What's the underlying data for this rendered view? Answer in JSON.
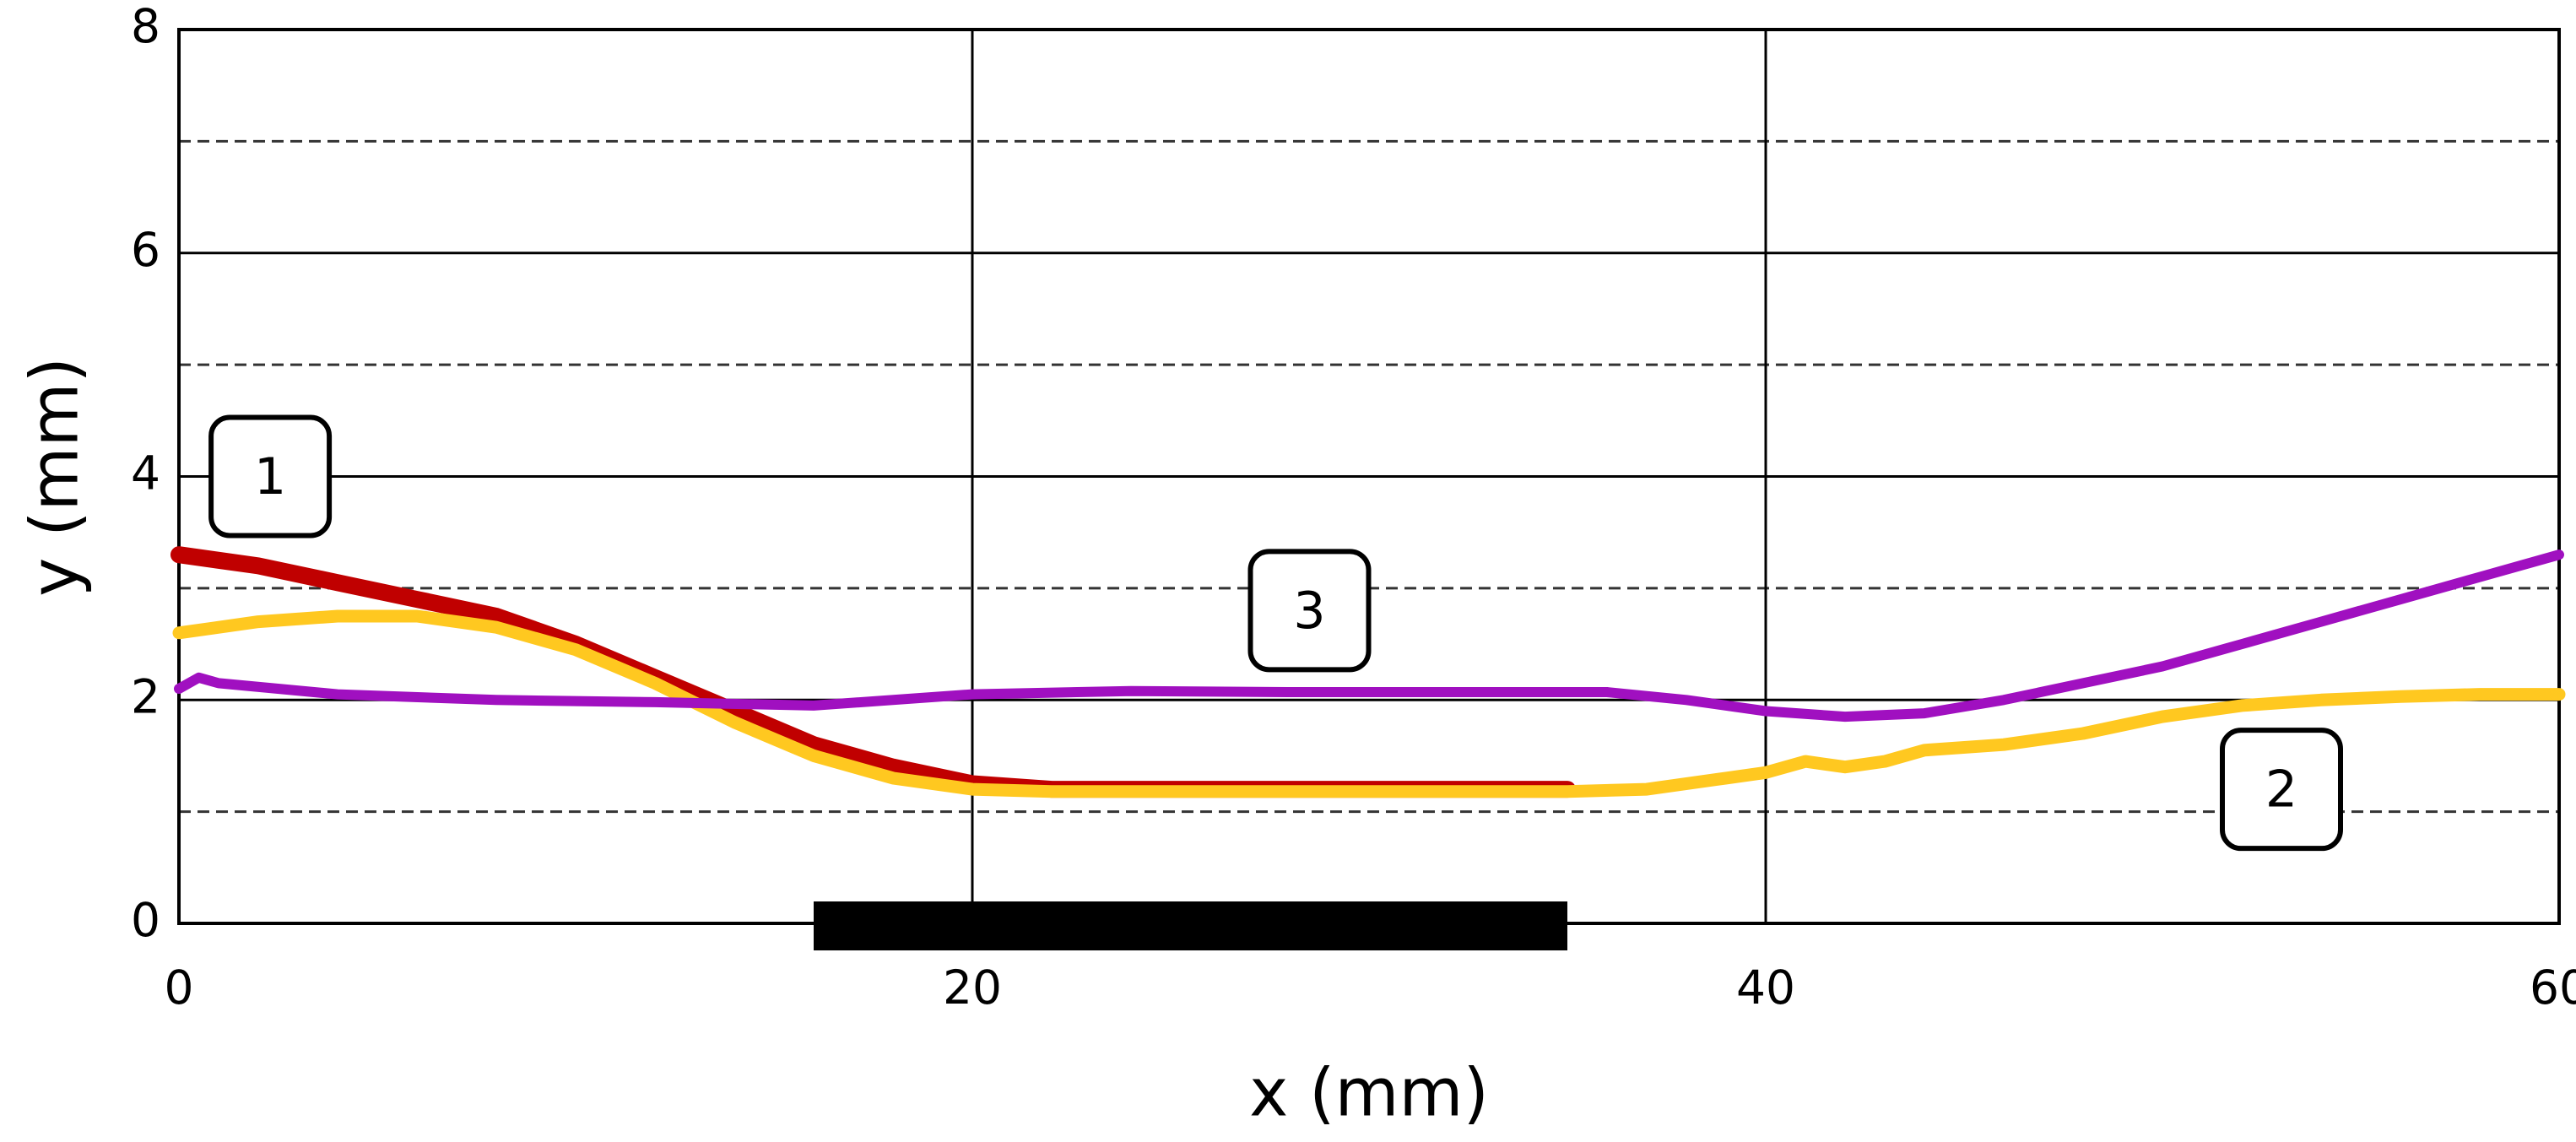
{
  "chart_data": {
    "type": "line",
    "xlabel": "x (mm)",
    "ylabel": "y (mm)",
    "xlim": [
      0,
      60
    ],
    "ylim": [
      0,
      8
    ],
    "xticks": [
      0,
      20,
      40,
      60
    ],
    "yticks": [
      0,
      2,
      4,
      6,
      8
    ],
    "yminor": [
      1,
      3,
      5,
      7
    ],
    "grid": true,
    "span": {
      "x": [
        16,
        35
      ],
      "color": "#000000"
    },
    "series": [
      {
        "name": "1",
        "color": "#c00000",
        "x": [
          0,
          1,
          2,
          4,
          6,
          8,
          10,
          12,
          14,
          16,
          18,
          20,
          22,
          25,
          30,
          35
        ],
        "values": [
          3.3,
          3.25,
          3.2,
          3.05,
          2.9,
          2.75,
          2.5,
          2.2,
          1.9,
          1.6,
          1.4,
          1.25,
          1.2,
          1.2,
          1.2,
          1.2
        ]
      },
      {
        "name": "2",
        "color": "#ffc820",
        "x": [
          0,
          2,
          4,
          6,
          8,
          10,
          12,
          14,
          16,
          18,
          20,
          22,
          25,
          30,
          35,
          37,
          39,
          40,
          41,
          42,
          43,
          44,
          46,
          48,
          50,
          52,
          54,
          56,
          58,
          60
        ],
        "values": [
          2.6,
          2.7,
          2.75,
          2.75,
          2.65,
          2.45,
          2.15,
          1.8,
          1.5,
          1.3,
          1.2,
          1.18,
          1.18,
          1.18,
          1.18,
          1.2,
          1.3,
          1.35,
          1.45,
          1.4,
          1.45,
          1.55,
          1.6,
          1.7,
          1.85,
          1.95,
          2.0,
          2.03,
          2.05,
          2.05
        ]
      },
      {
        "name": "3",
        "color": "#a010c0",
        "x": [
          0,
          0.5,
          1,
          4,
          8,
          12,
          16,
          20,
          24,
          28,
          32,
          36,
          38,
          40,
          42,
          44,
          46,
          48,
          50,
          52,
          54,
          56,
          58,
          60
        ],
        "values": [
          2.1,
          2.2,
          2.15,
          2.05,
          2.0,
          1.98,
          1.95,
          2.05,
          2.08,
          2.07,
          2.07,
          2.07,
          2.0,
          1.9,
          1.85,
          1.88,
          2.0,
          2.15,
          2.3,
          2.5,
          2.7,
          2.9,
          3.1,
          3.3
        ]
      }
    ]
  }
}
